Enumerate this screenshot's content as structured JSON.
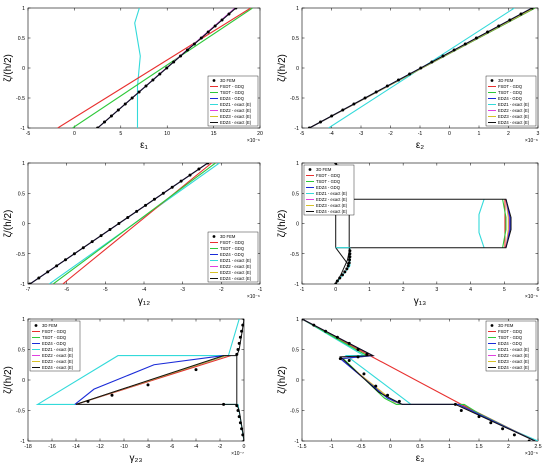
{
  "figure": {
    "legend_labels": [
      "3D FEM",
      "FSDT - GDQ",
      "TSDT - GDQ",
      "EDZ4 - GDQ",
      "EDZ1 - exact (E)",
      "EDZ2 - exact (E)",
      "EDZ3 - exact (E)",
      "EDZ4 - exact (E)"
    ],
    "colors": {
      "FEM": "#000000",
      "FSDT": "#e8302f",
      "TSDT": "#2ec83a",
      "EDZ4_GDQ": "#1a2bd8",
      "EDZ1": "#33dada",
      "EDZ2": "#e040e0",
      "EDZ3": "#d8c228",
      "EDZ4_exact": "#111111"
    }
  },
  "chart_data": [
    {
      "id": "p1",
      "type": "line",
      "xlabel": "ε₁",
      "ylabel": "ζ/(h/2)",
      "xlim": [
        -5,
        20
      ],
      "ylim": [
        -1,
        1
      ],
      "xticks": [
        "-5",
        "0",
        "5",
        "10",
        "15",
        "20"
      ],
      "yticks": [
        "-1",
        "-0.5",
        "0",
        "0.5",
        "1"
      ],
      "exponent": "×10⁻⁶",
      "legend": "bottom-right",
      "series": [
        {
          "key": "EDZ1",
          "x": [
            6.8,
            6.8,
            7.1,
            6.5,
            7.0
          ],
          "y": [
            -1,
            -0.3,
            0.2,
            0.75,
            1
          ]
        },
        {
          "key": "FSDT",
          "x": [
            -1.8,
            19
          ],
          "y": [
            -1,
            1
          ]
        },
        {
          "key": "TSDT",
          "x": [
            -0.2,
            19.2
          ],
          "y": [
            -1,
            1
          ]
        },
        {
          "key": "EDZ2",
          "x": [
            2.5,
            17.3
          ],
          "y": [
            -1,
            1
          ]
        },
        {
          "key": "EDZ3",
          "x": [
            2.5,
            17.4
          ],
          "y": [
            -1,
            1
          ]
        },
        {
          "key": "EDZ4_GDQ",
          "x": [
            2.5,
            17.4
          ],
          "y": [
            -1,
            1
          ]
        },
        {
          "key": "EDZ4_exact",
          "x": [
            2.5,
            17.4
          ],
          "y": [
            -1,
            1
          ]
        }
      ],
      "fem": {
        "x0": 2.5,
        "x1": 17.4,
        "n": 21
      }
    },
    {
      "id": "p2",
      "type": "line",
      "xlabel": "ε₂",
      "ylabel": "ζ/(h/2)",
      "xlim": [
        -5,
        3
      ],
      "ylim": [
        -1,
        1
      ],
      "xticks": [
        "-5",
        "-4",
        "-3",
        "-2",
        "-1",
        "0",
        "1",
        "2",
        "3"
      ],
      "yticks": [
        "-1",
        "-0.5",
        "0",
        "0.5",
        "1"
      ],
      "exponent": "×10⁻⁶",
      "legend": "bottom-right",
      "series": [
        {
          "key": "EDZ1",
          "x": [
            -4.1,
            2.2
          ],
          "y": [
            -1,
            1
          ]
        },
        {
          "key": "FSDT",
          "x": [
            -4.75,
            2.9
          ],
          "y": [
            -1,
            1
          ]
        },
        {
          "key": "TSDT",
          "x": [
            -4.75,
            2.9
          ],
          "y": [
            -1,
            1
          ]
        },
        {
          "key": "EDZ2",
          "x": [
            -4.75,
            2.85
          ],
          "y": [
            -1,
            1
          ]
        },
        {
          "key": "EDZ3",
          "x": [
            -4.75,
            2.85
          ],
          "y": [
            -1,
            1
          ]
        },
        {
          "key": "EDZ4_GDQ",
          "x": [
            -4.75,
            2.8
          ],
          "y": [
            -1,
            1
          ]
        },
        {
          "key": "EDZ4_exact",
          "x": [
            -4.75,
            2.8
          ],
          "y": [
            -1,
            1
          ]
        }
      ],
      "fem": {
        "x0": -4.75,
        "x1": 2.8,
        "n": 21
      }
    },
    {
      "id": "p3",
      "type": "line",
      "xlabel": "γ₁₂",
      "ylabel": "ζ/(h/2)",
      "xlim": [
        -7,
        -1
      ],
      "ylim": [
        -1,
        1
      ],
      "xticks": [
        "-7",
        "-6",
        "-5",
        "-4",
        "-3",
        "-2",
        "-1"
      ],
      "yticks": [
        "-1",
        "-0.5",
        "0",
        "0.5",
        "1"
      ],
      "exponent": "×10⁻⁶",
      "legend": "bottom-right",
      "series": [
        {
          "key": "EDZ1",
          "x": [
            -6.45,
            -2.05
          ],
          "y": [
            -1,
            1
          ]
        },
        {
          "key": "FSDT",
          "x": [
            -6.1,
            -2.25
          ],
          "y": [
            -1,
            1
          ]
        },
        {
          "key": "TSDT",
          "x": [
            -6.35,
            -2.15
          ],
          "y": [
            -1,
            1
          ]
        },
        {
          "key": "EDZ2",
          "x": [
            -6.95,
            -2.35
          ],
          "y": [
            -1,
            1
          ]
        },
        {
          "key": "EDZ3",
          "x": [
            -6.95,
            -2.35
          ],
          "y": [
            -1,
            1
          ]
        },
        {
          "key": "EDZ4_GDQ",
          "x": [
            -6.95,
            -2.35
          ],
          "y": [
            -1,
            1
          ]
        },
        {
          "key": "EDZ4_exact",
          "x": [
            -6.95,
            -2.35
          ],
          "y": [
            -1,
            1
          ]
        }
      ],
      "fem": {
        "x0": -6.95,
        "x1": -2.35,
        "n": 21
      }
    },
    {
      "id": "p4",
      "type": "line",
      "xlabel": "γ₁₃",
      "ylabel": "ζ/(h/2)",
      "xlim": [
        -1,
        6
      ],
      "ylim": [
        -1,
        1
      ],
      "xticks": [
        "-1",
        "0",
        "1",
        "2",
        "3",
        "4",
        "5",
        "6"
      ],
      "yticks": [
        "-1",
        "-0.5",
        "0",
        "0.5",
        "1"
      ],
      "exponent": "×10⁻⁶",
      "legend": "top-left",
      "series": [
        {
          "key": "EDZ1",
          "x": [
            4.4,
            4.25,
            4.25,
            4.4
          ],
          "y": [
            0.4,
            0.15,
            -0.15,
            -0.4
          ]
        },
        {
          "key": "FSDT",
          "x": [
            5.02,
            5.02
          ],
          "y": [
            0.4,
            -0.4
          ]
        },
        {
          "key": "TSDT",
          "x": [
            4.95,
            5.05,
            5.05,
            4.95
          ],
          "y": [
            0.4,
            0.1,
            -0.1,
            -0.4
          ]
        },
        {
          "key": "EDZ3",
          "x": [
            5.05,
            5.12,
            5.12,
            5.05
          ],
          "y": [
            0.4,
            0.1,
            -0.1,
            -0.4
          ]
        },
        {
          "key": "EDZ2",
          "x": [
            5.05,
            5.15,
            5.15,
            5.05
          ],
          "y": [
            0.4,
            0.1,
            -0.1,
            -0.4
          ]
        },
        {
          "key": "EDZ4_GDQ",
          "x": [
            5.05,
            5.17,
            5.17,
            5.05
          ],
          "y": [
            0.4,
            0.1,
            -0.1,
            -0.4
          ]
        },
        {
          "key": "EDZ4_exact",
          "x": [
            0,
            0.4,
            0.4,
            0,
            0,
            5.05,
            5.2,
            5.2,
            5.05,
            0
          ],
          "y": [
            0.4,
            0.7,
            -0.7,
            -0.4,
            0.4,
            0.4,
            0.1,
            -0.1,
            -0.4,
            -0.4
          ]
        },
        {
          "key": "EDZ1",
          "x": [
            0,
            0.42,
            0.42,
            0
          ],
          "y": [
            -1,
            -0.7,
            -0.4,
            -0.4
          ]
        },
        {
          "key": "EDZ4_exact",
          "x": [
            0,
            0.15,
            0.35,
            0.42
          ],
          "y": [
            1,
            0.85,
            0.6,
            0.4
          ]
        },
        {
          "key": "EDZ4_exact",
          "x": [
            0,
            0.15,
            0.35,
            0.42
          ],
          "y": [
            -1,
            -0.85,
            -0.6,
            -0.4
          ]
        }
      ],
      "fem": {
        "points": [
          [
            0,
            1
          ],
          [
            0.05,
            0.95
          ],
          [
            0.12,
            0.9
          ],
          [
            0.2,
            0.85
          ],
          [
            0.27,
            0.8
          ],
          [
            0.33,
            0.75
          ],
          [
            0.37,
            0.7
          ],
          [
            0.4,
            0.65
          ],
          [
            0.41,
            0.6
          ],
          [
            0.42,
            0.55
          ],
          [
            0.42,
            0.5
          ],
          [
            0.42,
            0.45
          ],
          [
            0.42,
            -0.45
          ],
          [
            0.42,
            -0.5
          ],
          [
            0.42,
            -0.55
          ],
          [
            0.41,
            -0.6
          ],
          [
            0.4,
            -0.65
          ],
          [
            0.37,
            -0.7
          ],
          [
            0.33,
            -0.75
          ],
          [
            0.27,
            -0.8
          ],
          [
            0.2,
            -0.85
          ],
          [
            0.12,
            -0.9
          ],
          [
            0.05,
            -0.95
          ],
          [
            0,
            -1
          ]
        ]
      }
    },
    {
      "id": "p5",
      "type": "line",
      "xlabel": "γ₂₃",
      "ylabel": "ζ/(h/2)",
      "xlim": [
        -18,
        0
      ],
      "ylim": [
        -1,
        1
      ],
      "xticks": [
        "-18",
        "-16",
        "-14",
        "-12",
        "-10",
        "-8",
        "-6",
        "-4",
        "-2",
        "0"
      ],
      "yticks": [
        "-1",
        "-0.5",
        "0",
        "0.5",
        "1"
      ],
      "exponent": "×10⁻⁷",
      "legend": "top-left",
      "series": [
        {
          "key": "EDZ1",
          "x": [
            -0.4,
            -1.3,
            -10.5,
            -17.2,
            -15,
            -14
          ],
          "y": [
            1,
            0.4,
            0.4,
            -0.4,
            -0.4,
            -0.4
          ]
        },
        {
          "key": "EDZ1",
          "x": [
            -1.7,
            -0.5,
            0
          ],
          "y": [
            -0.4,
            -0.4,
            -1
          ]
        },
        {
          "key": "FSDT",
          "x": [
            -14,
            -1.1
          ],
          "y": [
            -0.4,
            0.4
          ]
        },
        {
          "key": "TSDT",
          "x": [
            -14,
            -1.5
          ],
          "y": [
            -0.4,
            0.4
          ]
        },
        {
          "key": "EDZ2",
          "x": [
            -14,
            -1.6
          ],
          "y": [
            -0.4,
            0.4
          ]
        },
        {
          "key": "EDZ3",
          "x": [
            -14,
            -1.6
          ],
          "y": [
            -0.4,
            0.4
          ]
        },
        {
          "key": "EDZ4_GDQ",
          "x": [
            -14.1,
            -12.5,
            -7.5,
            -1.7
          ],
          "y": [
            -0.4,
            -0.15,
            0.25,
            0.4
          ]
        },
        {
          "key": "EDZ4_exact",
          "x": [
            0,
            -0.15,
            -0.4,
            -0.6,
            -1.7,
            -14,
            -1.7,
            -0.6,
            -0.4,
            -0.15,
            0
          ],
          "y": [
            1,
            0.8,
            0.5,
            0.4,
            0.4,
            -0.4,
            -0.4,
            -0.4,
            -0.5,
            -0.8,
            -1
          ]
        },
        {
          "key": "EDZ4_exact",
          "x": [
            -0.6,
            -0.6
          ],
          "y": [
            0.4,
            -0.4
          ]
        }
      ],
      "fem": {
        "points": [
          [
            0,
            1
          ],
          [
            -0.1,
            0.9
          ],
          [
            -0.2,
            0.8
          ],
          [
            -0.3,
            0.7
          ],
          [
            -0.4,
            0.6
          ],
          [
            -0.5,
            0.5
          ],
          [
            -0.6,
            0.42
          ],
          [
            -4,
            0.17
          ],
          [
            -8,
            -0.08
          ],
          [
            -11,
            -0.25
          ],
          [
            -13,
            -0.35
          ],
          [
            -1.7,
            -0.4
          ],
          [
            -0.6,
            -0.42
          ],
          [
            -0.5,
            -0.5
          ],
          [
            -0.4,
            -0.6
          ],
          [
            -0.3,
            -0.7
          ],
          [
            -0.2,
            -0.8
          ],
          [
            -0.1,
            -0.9
          ],
          [
            0,
            -1
          ]
        ]
      }
    },
    {
      "id": "p6",
      "type": "line",
      "xlabel": "ε₃",
      "ylabel": "ζ/(h/2)",
      "xlim": [
        -1.5,
        2.5
      ],
      "ylim": [
        -1,
        1
      ],
      "xticks": [
        "-1.5",
        "-1",
        "-0.5",
        "0",
        "0.5",
        "1",
        "1.5",
        "2",
        "2.5"
      ],
      "yticks": [
        "-1",
        "-0.5",
        "0",
        "0.5",
        "1"
      ],
      "exponent": "×10⁻⁶",
      "legend": "top-right",
      "series": [
        {
          "key": "EDZ1",
          "x": [
            -1.5,
            -0.45,
            -0.75,
            0.35,
            0.6,
            1.2,
            1.9,
            2.5
          ],
          "y": [
            1,
            0.4,
            0.4,
            -0.4,
            -0.4,
            -0.4,
            -0.75,
            -1
          ]
        },
        {
          "key": "FSDT",
          "x": [
            -1.5,
            -0.35,
            1.2,
            2.45
          ],
          "y": [
            1,
            0.4,
            -0.4,
            -1
          ]
        },
        {
          "key": "TSDT",
          "x": [
            -1.5,
            -0.4,
            -0.8,
            -0.1,
            0.1,
            1.25,
            1.5,
            2.45
          ],
          "y": [
            1,
            0.4,
            0.35,
            -0.3,
            -0.4,
            -0.4,
            -0.55,
            -1
          ]
        },
        {
          "key": "EDZ2",
          "x": [
            -1.5,
            -0.3,
            -0.85,
            0.05,
            0.2,
            1.15,
            2.45
          ],
          "y": [
            1,
            0.4,
            0.35,
            -0.35,
            -0.4,
            -0.4,
            -1
          ]
        },
        {
          "key": "EDZ3",
          "x": [
            -1.5,
            -0.3,
            -0.85,
            0.05,
            0.2,
            1.15,
            2.45
          ],
          "y": [
            1,
            0.4,
            0.35,
            -0.35,
            -0.4,
            -0.4,
            -1
          ]
        },
        {
          "key": "EDZ4_GDQ",
          "x": [
            -1.5,
            -0.3,
            -0.85,
            -0.05,
            0.2,
            1.15,
            2.45
          ],
          "y": [
            1,
            0.4,
            0.35,
            -0.3,
            -0.4,
            -0.4,
            -1
          ]
        },
        {
          "key": "EDZ4_exact",
          "x": [
            -1.5,
            -0.3,
            -0.85,
            -0.2,
            0.2,
            1.1,
            2.45
          ],
          "y": [
            1,
            0.4,
            0.38,
            -0.2,
            -0.4,
            -0.4,
            -1
          ]
        }
      ],
      "fem": {
        "points": [
          [
            -1.5,
            1
          ],
          [
            -1.3,
            0.9
          ],
          [
            -1.1,
            0.8
          ],
          [
            -0.9,
            0.7
          ],
          [
            -0.7,
            0.6
          ],
          [
            -0.55,
            0.5
          ],
          [
            -0.4,
            0.42
          ],
          [
            -0.55,
            0.38
          ],
          [
            -0.7,
            0.32
          ],
          [
            -0.85,
            0.35
          ],
          [
            -0.45,
            0.1
          ],
          [
            -0.25,
            -0.1
          ],
          [
            -0.05,
            -0.25
          ],
          [
            0.15,
            -0.35
          ],
          [
            1.1,
            -0.4
          ],
          [
            1.2,
            -0.5
          ],
          [
            1.5,
            -0.6
          ],
          [
            1.7,
            -0.7
          ],
          [
            1.9,
            -0.8
          ],
          [
            2.1,
            -0.9
          ],
          [
            2.35,
            -1
          ]
        ]
      }
    }
  ]
}
